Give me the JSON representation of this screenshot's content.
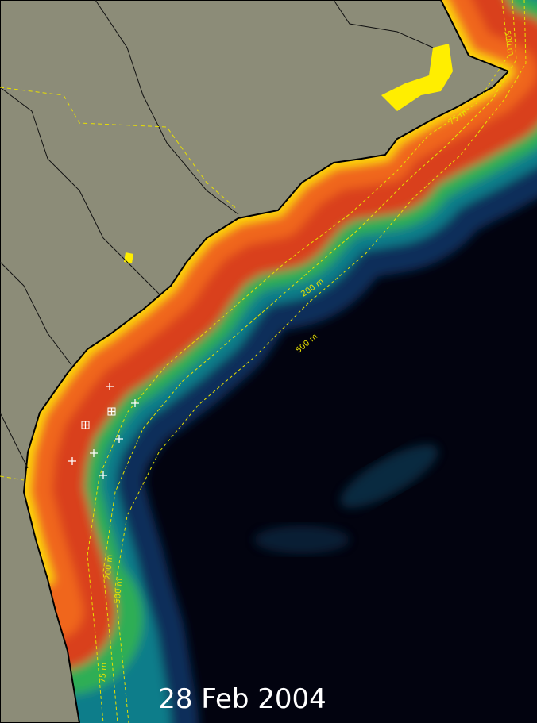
{
  "date": "28 Feb 2004",
  "contour_labels": [
    "75 m",
    "200 m",
    "500 m",
    "200 m",
    "500 m",
    "75 m",
    "500 m"
  ]
}
